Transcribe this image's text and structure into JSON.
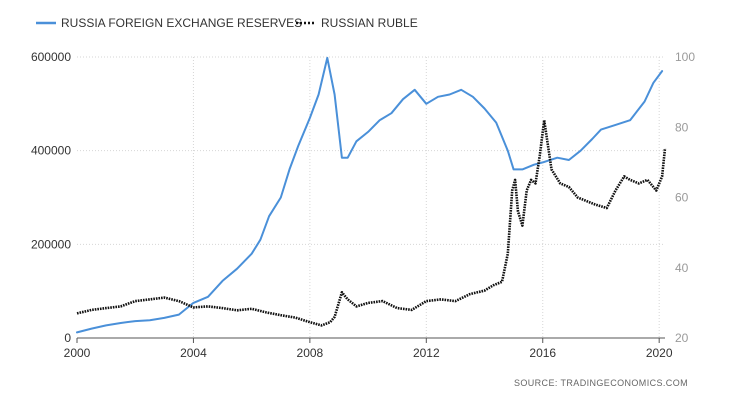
{
  "chart_data": {
    "type": "line",
    "title": "",
    "legend_position": "top-left",
    "grid": true,
    "source": "SOURCE:  TRADINGECONOMICS.COM",
    "x_ticks": [
      "2000",
      "2004",
      "2008",
      "2012",
      "2016",
      "2020"
    ],
    "xlim": [
      2000,
      2020.2
    ],
    "y_left": {
      "ticks": [
        "0",
        "200000",
        "400000",
        "600000"
      ],
      "lim": [
        0,
        600000
      ]
    },
    "y_right": {
      "ticks": [
        "20",
        "40",
        "60",
        "80",
        "100"
      ],
      "lim": [
        20,
        100
      ]
    },
    "series": [
      {
        "name": "RUSSIA FOREIGN EXCHANGE RESERVES",
        "axis": "left",
        "color": "#4a90d9",
        "style": "solid",
        "x": [
          2000.0,
          2000.5,
          2001.0,
          2001.5,
          2002.0,
          2002.5,
          2003.0,
          2003.5,
          2004.0,
          2004.5,
          2005.0,
          2005.5,
          2006.0,
          2006.3,
          2006.6,
          2007.0,
          2007.3,
          2007.6,
          2008.0,
          2008.3,
          2008.6,
          2008.85,
          2009.1,
          2009.3,
          2009.6,
          2010.0,
          2010.4,
          2010.8,
          2011.2,
          2011.6,
          2012.0,
          2012.4,
          2012.8,
          2013.2,
          2013.6,
          2014.0,
          2014.4,
          2014.8,
          2015.0,
          2015.3,
          2015.7,
          2016.0,
          2016.5,
          2016.9,
          2017.3,
          2017.7,
          2018.0,
          2018.5,
          2019.0,
          2019.5,
          2019.8,
          2020.1
        ],
        "values": [
          12000,
          20000,
          27000,
          32000,
          36000,
          38000,
          43000,
          50000,
          75000,
          88000,
          122000,
          148000,
          180000,
          210000,
          260000,
          300000,
          360000,
          410000,
          470000,
          520000,
          598000,
          520000,
          385000,
          385000,
          420000,
          440000,
          465000,
          480000,
          510000,
          530000,
          500000,
          515000,
          520000,
          530000,
          515000,
          490000,
          460000,
          400000,
          360000,
          360000,
          370000,
          375000,
          385000,
          380000,
          400000,
          425000,
          445000,
          455000,
          465000,
          505000,
          545000,
          570000
        ]
      },
      {
        "name": "RUSSIAN RUBLE",
        "axis": "right",
        "color": "#111111",
        "style": "dotted",
        "x": [
          2000.0,
          2000.5,
          2001.0,
          2001.5,
          2002.0,
          2002.5,
          2003.0,
          2003.5,
          2004.0,
          2004.5,
          2005.0,
          2005.5,
          2006.0,
          2006.5,
          2007.0,
          2007.5,
          2008.0,
          2008.4,
          2008.7,
          2008.85,
          2009.1,
          2009.3,
          2009.6,
          2010.0,
          2010.5,
          2011.0,
          2011.5,
          2012.0,
          2012.5,
          2013.0,
          2013.5,
          2014.0,
          2014.3,
          2014.6,
          2014.8,
          2014.95,
          2015.05,
          2015.15,
          2015.3,
          2015.45,
          2015.6,
          2015.75,
          2015.9,
          2016.05,
          2016.3,
          2016.6,
          2016.9,
          2017.2,
          2017.5,
          2017.8,
          2018.2,
          2018.5,
          2018.8,
          2019.0,
          2019.3,
          2019.6,
          2019.9,
          2020.1,
          2020.2
        ],
        "values": [
          27,
          28,
          28.5,
          29,
          30.5,
          31,
          31.5,
          30.5,
          28.7,
          29,
          28.5,
          27.9,
          28.3,
          27.3,
          26.5,
          25.8,
          24.5,
          23.6,
          24.5,
          26,
          33,
          31,
          29,
          30,
          30.5,
          28.5,
          28,
          30.5,
          31,
          30.5,
          32.5,
          33.5,
          35,
          36,
          44,
          62,
          65,
          56,
          52,
          62,
          65,
          64,
          72,
          82,
          68,
          64,
          63,
          60,
          59,
          58,
          57,
          62,
          66,
          65,
          64,
          65,
          62,
          66,
          74
        ]
      }
    ]
  }
}
